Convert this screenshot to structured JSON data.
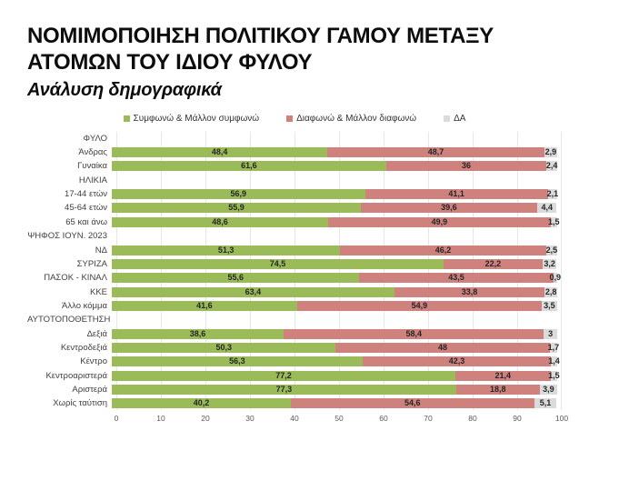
{
  "header": {
    "title_line1": "ΝΟΜΙΜΟΠΟΙΗΣΗ ΠΟΛΙΤΙΚΟΥ ΓΑΜΟΥ ΜΕΤΑΞΥ",
    "title_line2": "ΑΤΟΜΩΝ ΤΟΥ ΙΔΙΟΥ ΦΥΛΟΥ",
    "subtitle": "Ανάλυση δημογραφικά"
  },
  "chart_data": {
    "type": "bar",
    "orientation": "horizontal",
    "stacked": true,
    "percent_total": 100,
    "xlim": [
      0,
      100
    ],
    "x_ticks": [
      0,
      10,
      20,
      30,
      40,
      50,
      60,
      70,
      80,
      90,
      100
    ],
    "grid": true,
    "legend_position": "top",
    "legend": [
      {
        "label": "Συμφωνώ & Μάλλον συμφωνώ",
        "color": "#9BBB59"
      },
      {
        "label": "Διαφωνώ & Μάλλον διαφωνώ",
        "color": "#CF817E"
      },
      {
        "label": "ΔΑ",
        "color": "#DBDBDB"
      }
    ],
    "rows": [
      {
        "label": "ΦΥΛΟ",
        "header": true
      },
      {
        "label": "Άνδρας",
        "values": [
          48.4,
          48.7,
          2.9
        ],
        "value_labels": [
          "48,4",
          "48,7",
          "2,9"
        ]
      },
      {
        "label": "Γυναίκα",
        "values": [
          61.6,
          36,
          2.4
        ],
        "value_labels": [
          "61,6",
          "36",
          "2,4"
        ]
      },
      {
        "label": "ΗΛΙΚΙΑ",
        "header": true
      },
      {
        "label": "17-44 ετών",
        "values": [
          56.9,
          41.1,
          2.1
        ],
        "value_labels": [
          "56,9",
          "41,1",
          "2,1"
        ]
      },
      {
        "label": "45-64 ετών",
        "values": [
          55.9,
          39.6,
          4.4
        ],
        "value_labels": [
          "55,9",
          "39,6",
          "4,4"
        ]
      },
      {
        "label": "65 και άνω",
        "values": [
          48.6,
          49.9,
          1.5
        ],
        "value_labels": [
          "48,6",
          "49,9",
          "1,5"
        ]
      },
      {
        "label": "ΨΗΦΟΣ ΙΟΥΝ. 2023",
        "header": true
      },
      {
        "label": "ΝΔ",
        "values": [
          51.3,
          46.2,
          2.5
        ],
        "value_labels": [
          "51,3",
          "46,2",
          "2,5"
        ]
      },
      {
        "label": "ΣΥΡΙΖΑ",
        "values": [
          74.5,
          22.2,
          3.2
        ],
        "value_labels": [
          "74,5",
          "22,2",
          "3,2"
        ]
      },
      {
        "label": "ΠΑΣΟΚ - ΚΙΝΑΛ",
        "values": [
          55.6,
          43.5,
          0.9
        ],
        "value_labels": [
          "55,6",
          "43,5",
          "0,9"
        ]
      },
      {
        "label": "ΚΚΕ",
        "values": [
          63.4,
          33.8,
          2.8
        ],
        "value_labels": [
          "63,4",
          "33,8",
          "2,8"
        ]
      },
      {
        "label": "Άλλο κόμμα",
        "values": [
          41.6,
          54.9,
          3.5
        ],
        "value_labels": [
          "41,6",
          "54,9",
          "3,5"
        ]
      },
      {
        "label": "ΑΥΤΟΤΟΠΟΘΕΤΗΣΗ",
        "header": true
      },
      {
        "label": "Δεξιά",
        "values": [
          38.6,
          58.4,
          3
        ],
        "value_labels": [
          "38,6",
          "58,4",
          "3"
        ]
      },
      {
        "label": "Κεντροδεξιά",
        "values": [
          50.3,
          48,
          1.7
        ],
        "value_labels": [
          "50,3",
          "48",
          "1,7"
        ]
      },
      {
        "label": "Κέντρο",
        "values": [
          56.3,
          42.3,
          1.4
        ],
        "value_labels": [
          "56,3",
          "42,3",
          "1,4"
        ]
      },
      {
        "label": "Κεντροαριστερά",
        "values": [
          77.2,
          21.4,
          1.5
        ],
        "value_labels": [
          "77,2",
          "21,4",
          "1,5"
        ]
      },
      {
        "label": "Αριστερά",
        "values": [
          77.3,
          18.8,
          3.9
        ],
        "value_labels": [
          "77,3",
          "18,8",
          "3,9"
        ]
      },
      {
        "label": "Χωρίς ταύτιση",
        "values": [
          40.2,
          54.6,
          5.1
        ],
        "value_labels": [
          "40,2",
          "54,6",
          "5,1"
        ]
      }
    ]
  }
}
